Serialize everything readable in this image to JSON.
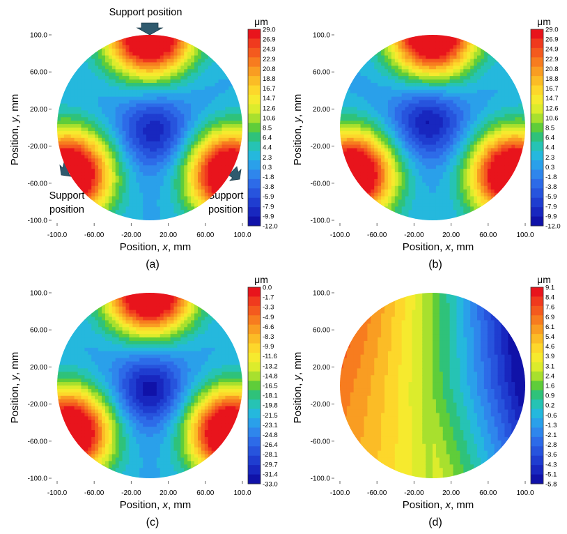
{
  "figure": {
    "panels": [
      {
        "label": "(a)",
        "xlabel_prefix": "Position, ",
        "xlabel_var": "x",
        "xlabel_suffix": ", mm",
        "ylabel_prefix": "Position, ",
        "ylabel_var": "y",
        "ylabel_suffix": ", mm",
        "xticks": [
          "-100.0",
          "-60.00",
          "-20.00",
          "20.00",
          "60.00",
          "100.0"
        ],
        "yticks": [
          "100.0",
          "60.00",
          "20.00",
          "-20.00",
          "-60.00",
          "-100.0"
        ],
        "colorbar_unit": "μm",
        "colorbar_ticks": [
          "29.0",
          "26.9",
          "24.9",
          "22.9",
          "20.8",
          "18.8",
          "16.7",
          "14.7",
          "12.6",
          "10.6",
          "8.5",
          "6.4",
          "4.4",
          "2.3",
          "0.3",
          "-1.8",
          "-3.8",
          "-5.9",
          "-7.9",
          "-9.9",
          "-12.0"
        ],
        "annotations": {
          "top": "Support position",
          "left_line1": "Support",
          "left_line2": "position",
          "right_line1": "Support",
          "right_line2": "position"
        }
      },
      {
        "label": "(b)",
        "xlabel_prefix": "Position, ",
        "xlabel_var": "x",
        "xlabel_suffix": ", mm",
        "ylabel_prefix": "Position, ",
        "ylabel_var": "y",
        "ylabel_suffix": ", mm",
        "xticks": [
          "-100.0",
          "-60.00",
          "-20.00",
          "20.00",
          "60.00",
          "100.0"
        ],
        "yticks": [
          "100.0",
          "60.00",
          "20.00",
          "-20.00",
          "-60.00",
          "-100.0"
        ],
        "colorbar_unit": "μm",
        "colorbar_ticks": [
          "29.0",
          "26.9",
          "24.9",
          "22.9",
          "20.8",
          "18.8",
          "16.7",
          "14.7",
          "12.6",
          "10.6",
          "8.5",
          "6.4",
          "4.4",
          "2.3",
          "0.3",
          "-1.8",
          "-3.8",
          "-5.9",
          "-7.9",
          "-9.9",
          "-12.0"
        ]
      },
      {
        "label": "(c)",
        "xlabel_prefix": "Position, ",
        "xlabel_var": "x",
        "xlabel_suffix": ", mm",
        "ylabel_prefix": "Position, ",
        "ylabel_var": "y",
        "ylabel_suffix": ", mm",
        "xticks": [
          "-100.0",
          "-60.00",
          "-20.00",
          "20.00",
          "60.00",
          "100.0"
        ],
        "yticks": [
          "100.0",
          "60.00",
          "20.00",
          "-20.00",
          "-60.00",
          "-100.0"
        ],
        "colorbar_unit": "μm",
        "colorbar_ticks": [
          "0.0",
          "-1.7",
          "-3.3",
          "-4.9",
          "-6.6",
          "-8.3",
          "-9.9",
          "-11.6",
          "-13.2",
          "-14.8",
          "-16.5",
          "-18.1",
          "-19.8",
          "-21.5",
          "-23.1",
          "-24.8",
          "-26.4",
          "-28.1",
          "-29.7",
          "-31.4",
          "-33.0"
        ]
      },
      {
        "label": "(d)",
        "xlabel_prefix": "Position, ",
        "xlabel_var": "x",
        "xlabel_suffix": ", mm",
        "ylabel_prefix": "Position, ",
        "ylabel_var": "y",
        "ylabel_suffix": ", mm",
        "xticks": [
          "-100.0",
          "-60.00",
          "-20.00",
          "20.00",
          "60.00",
          "100.0"
        ],
        "yticks": [
          "100.0",
          "60.00",
          "20.00",
          "-20.00",
          "-60.00",
          "-100.0"
        ],
        "colorbar_unit": "μm",
        "colorbar_ticks": [
          "9.1",
          "8.4",
          "7.6",
          "6.9",
          "6.1",
          "5.4",
          "4.6",
          "3.9",
          "3.1",
          "2.4",
          "1.6",
          "0.9",
          "0.2",
          "-0.6",
          "-1.3",
          "-2.1",
          "-2.8",
          "-3.6",
          "-4.3",
          "-5.1",
          "-5.8"
        ]
      }
    ]
  },
  "chart_data": [
    {
      "type": "heatmap",
      "xlim": [
        -100,
        100
      ],
      "ylim": [
        -100,
        100
      ],
      "value_range": [
        -12.0,
        29.0
      ],
      "peaks": [
        [
          0,
          100
        ],
        [
          -87,
          -50
        ],
        [
          87,
          -50
        ]
      ],
      "minimum": [
        0,
        -5
      ]
    },
    {
      "type": "heatmap",
      "xlim": [
        -100,
        100
      ],
      "ylim": [
        -100,
        100
      ],
      "value_range": [
        -12.0,
        29.0
      ],
      "peaks": [
        [
          0,
          100
        ],
        [
          -87,
          -50
        ],
        [
          87,
          -50
        ]
      ],
      "minimum": [
        0,
        0
      ]
    },
    {
      "type": "heatmap",
      "xlim": [
        -100,
        100
      ],
      "ylim": [
        -100,
        100
      ],
      "value_range": [
        -33.0,
        0.0
      ],
      "peaks": [
        [
          0,
          100
        ],
        [
          -87,
          -50
        ],
        [
          87,
          -50
        ]
      ],
      "minimum": [
        0,
        -5
      ]
    },
    {
      "type": "heatmap",
      "xlim": [
        -100,
        100
      ],
      "ylim": [
        -100,
        100
      ],
      "value_range": [
        -5.8,
        9.1
      ],
      "peaks": [
        [
          -100,
          30
        ]
      ],
      "minimum": [
        100,
        30
      ]
    }
  ]
}
